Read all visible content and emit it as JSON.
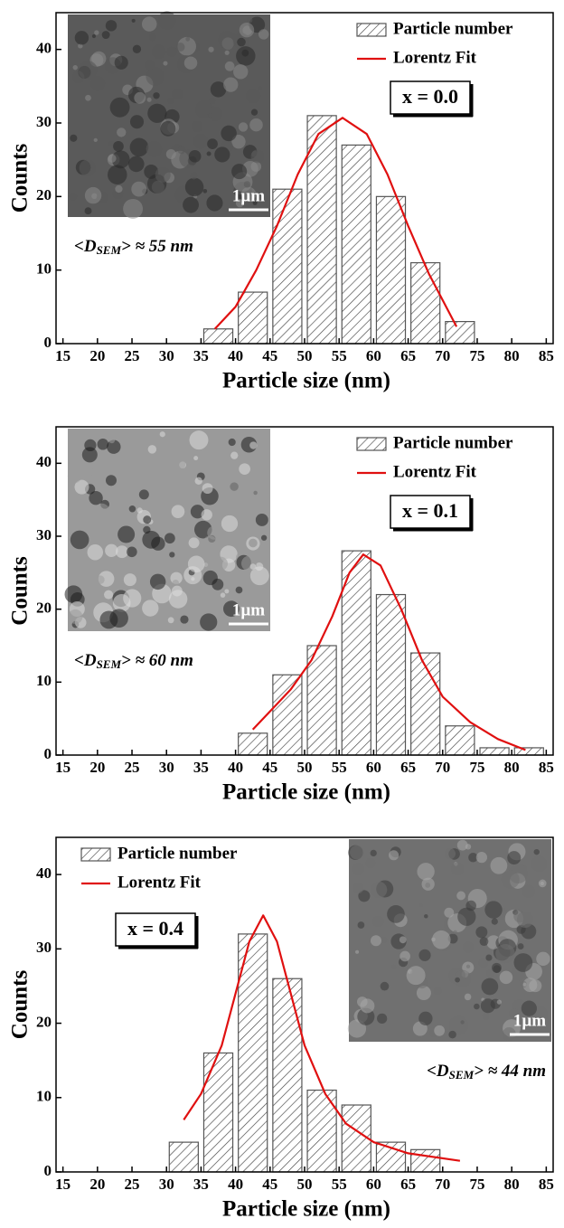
{
  "chart_data": [
    {
      "type": "histogram",
      "xlabel": "Particle size (nm)",
      "ylabel": "Counts",
      "bins": [
        35,
        40,
        45,
        50,
        55,
        60,
        65,
        70,
        75
      ],
      "series": [
        {
          "name": "Particle number",
          "color": "#555555",
          "values": [
            2,
            7,
            21,
            31,
            27,
            20,
            11,
            3
          ]
        },
        {
          "name": "Lorentz Fit",
          "color": "#e01010",
          "x": [
            37,
            40,
            43,
            46,
            49,
            52,
            55.5,
            59,
            62,
            65,
            68,
            72
          ],
          "values": [
            2,
            5,
            10,
            16,
            23,
            28.5,
            30.7,
            28.5,
            23,
            16,
            9.5,
            2.3
          ]
        }
      ],
      "legend": "upper right",
      "label_box": "x = 0.0",
      "inset_scale": "1µm",
      "annotation": {
        "open": "<D",
        "sub": "SEM",
        "close": "> ≈ 55 nm"
      },
      "xlim": [
        14,
        86
      ],
      "xticks": [
        15,
        20,
        25,
        30,
        35,
        40,
        45,
        50,
        55,
        60,
        65,
        70,
        75,
        80,
        85
      ],
      "ylim": [
        0,
        45
      ],
      "yticks": [
        0,
        10,
        20,
        30,
        40
      ]
    },
    {
      "type": "histogram",
      "xlabel": "Particle size (nm)",
      "ylabel": "Counts",
      "bins": [
        40,
        45,
        50,
        55,
        60,
        65,
        70,
        75,
        80,
        85
      ],
      "series": [
        {
          "name": "Particle number",
          "color": "#555555",
          "values": [
            3,
            11,
            15,
            28,
            22,
            14,
            4,
            1,
            1
          ]
        },
        {
          "name": "Lorentz Fit",
          "color": "#e01010",
          "x": [
            42.5,
            45,
            48,
            51,
            54,
            56.5,
            58.5,
            61,
            64,
            67,
            70,
            74,
            78,
            82
          ],
          "values": [
            3.5,
            6,
            9,
            13,
            19,
            25,
            27.5,
            26,
            20,
            13,
            8,
            4.5,
            2.2,
            0.7
          ]
        }
      ],
      "legend": "upper right",
      "label_box": "x = 0.1",
      "inset_scale": "1µm",
      "annotation": {
        "open": "<D",
        "sub": "SEM",
        "close": "> ≈ 60 nm"
      },
      "xlim": [
        14,
        86
      ],
      "xticks": [
        15,
        20,
        25,
        30,
        35,
        40,
        45,
        50,
        55,
        60,
        65,
        70,
        75,
        80,
        85
      ],
      "ylim": [
        0,
        45
      ],
      "yticks": [
        0,
        10,
        20,
        30,
        40
      ]
    },
    {
      "type": "histogram",
      "xlabel": "Particle size (nm)",
      "ylabel": "Counts",
      "bins": [
        30,
        35,
        40,
        45,
        50,
        55,
        60,
        65,
        70
      ],
      "series": [
        {
          "name": "Particle number",
          "color": "#555555",
          "values": [
            4,
            16,
            32,
            26,
            11,
            9,
            4,
            3
          ]
        },
        {
          "name": "Lorentz Fit",
          "color": "#e01010",
          "x": [
            32.5,
            35,
            38,
            40,
            42,
            44,
            46,
            48,
            50,
            53,
            56,
            60,
            65,
            72.5
          ],
          "values": [
            7,
            10.5,
            17,
            24,
            31,
            34.5,
            31,
            24,
            17,
            10.5,
            6.5,
            4,
            2.5,
            1.5
          ]
        }
      ],
      "legend": "upper left",
      "label_box": "x = 0.4",
      "inset_scale": "1µm",
      "annotation": {
        "open": "<D",
        "sub": "SEM",
        "close": "> ≈ 44 nm"
      },
      "xlim": [
        14,
        86
      ],
      "xticks": [
        15,
        20,
        25,
        30,
        35,
        40,
        45,
        50,
        55,
        60,
        65,
        70,
        75,
        80,
        85
      ],
      "ylim": [
        0,
        45
      ],
      "yticks": [
        0,
        10,
        20,
        30,
        40
      ]
    }
  ]
}
